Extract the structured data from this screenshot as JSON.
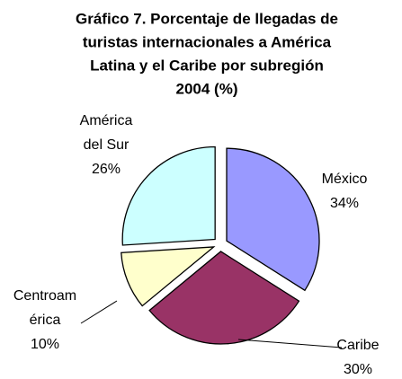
{
  "chart_data": {
    "type": "pie",
    "title": [
      "Gráfico 7. Porcentaje de llegadas de",
      "turistas internacionales a América",
      "Latina y el Caribe por subregión",
      "2004 (%)"
    ],
    "categories": [
      "México",
      "Caribe",
      "Centroamérica",
      "América del Sur"
    ],
    "values": [
      34,
      30,
      10,
      26
    ],
    "value_labels": [
      "34%",
      "30%",
      "10%",
      "26%"
    ],
    "colors": [
      "#9999ff",
      "#993366",
      "#ffffcc",
      "#ccffff"
    ]
  }
}
